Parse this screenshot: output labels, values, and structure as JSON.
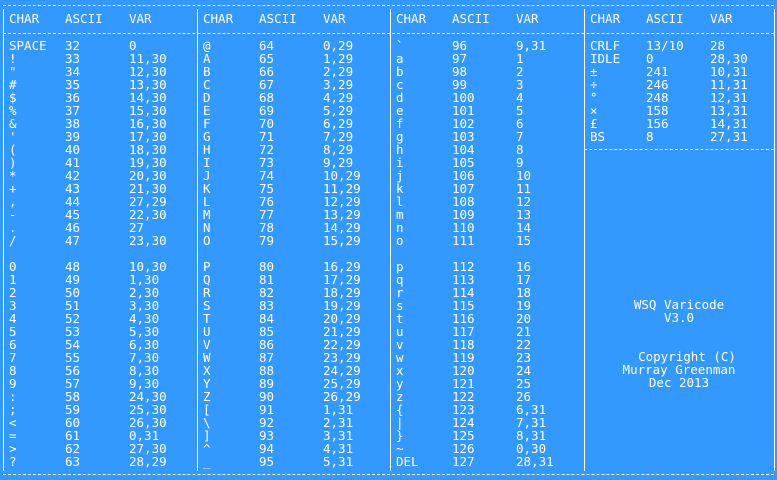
{
  "headers": [
    "CHAR",
    "ASCII",
    "VAR"
  ],
  "panels": [
    {
      "rows": [
        [
          "SPACE",
          "32",
          "0"
        ],
        [
          "!",
          "33",
          "11,30"
        ],
        [
          "\"",
          "34",
          "12,30"
        ],
        [
          "#",
          "35",
          "13,30"
        ],
        [
          "$",
          "36",
          "14,30"
        ],
        [
          "%",
          "37",
          "15,30"
        ],
        [
          "&",
          "38",
          "16,30"
        ],
        [
          "'",
          "39",
          "17,30"
        ],
        [
          "(",
          "40",
          "18,30"
        ],
        [
          ")",
          "41",
          "19,30"
        ],
        [
          "*",
          "42",
          "20,30"
        ],
        [
          "+",
          "43",
          "21,30"
        ],
        [
          ",",
          "44",
          "27,29"
        ],
        [
          "-",
          "45",
          "22,30"
        ],
        [
          ".",
          "46",
          "27"
        ],
        [
          "/",
          "47",
          "23,30"
        ],
        [
          "0",
          "48",
          "10,30"
        ],
        [
          "1",
          "49",
          "1,30"
        ],
        [
          "2",
          "50",
          "2,30"
        ],
        [
          "3",
          "51",
          "3,30"
        ],
        [
          "4",
          "52",
          "4,30"
        ],
        [
          "5",
          "53",
          "5,30"
        ],
        [
          "6",
          "54",
          "6,30"
        ],
        [
          "7",
          "55",
          "7,30"
        ],
        [
          "8",
          "56",
          "8,30"
        ],
        [
          "9",
          "57",
          "9,30"
        ],
        [
          ":",
          "58",
          "24,30"
        ],
        [
          ";",
          "59",
          "25,30"
        ],
        [
          "<",
          "60",
          "26,30"
        ],
        [
          "=",
          "61",
          "0,31"
        ],
        [
          ">",
          "62",
          "27,30"
        ],
        [
          "?",
          "63",
          "28,29"
        ]
      ]
    },
    {
      "rows": [
        [
          "@",
          "64",
          "0,29"
        ],
        [
          "A",
          "65",
          "1,29"
        ],
        [
          "B",
          "66",
          "2,29"
        ],
        [
          "C",
          "67",
          "3,29"
        ],
        [
          "D",
          "68",
          "4,29"
        ],
        [
          "E",
          "69",
          "5,29"
        ],
        [
          "F",
          "70",
          "6,29"
        ],
        [
          "G",
          "71",
          "7,29"
        ],
        [
          "H",
          "72",
          "8,29"
        ],
        [
          "I",
          "73",
          "9,29"
        ],
        [
          "J",
          "74",
          "10,29"
        ],
        [
          "K",
          "75",
          "11,29"
        ],
        [
          "L",
          "76",
          "12,29"
        ],
        [
          "M",
          "77",
          "13,29"
        ],
        [
          "N",
          "78",
          "14,29"
        ],
        [
          "O",
          "79",
          "15,29"
        ],
        [
          "P",
          "80",
          "16,29"
        ],
        [
          "Q",
          "81",
          "17,29"
        ],
        [
          "R",
          "82",
          "18,29"
        ],
        [
          "S",
          "83",
          "19,29"
        ],
        [
          "T",
          "84",
          "20,29"
        ],
        [
          "U",
          "85",
          "21,29"
        ],
        [
          "V",
          "86",
          "22,29"
        ],
        [
          "W",
          "87",
          "23,29"
        ],
        [
          "X",
          "88",
          "24,29"
        ],
        [
          "Y",
          "89",
          "25,29"
        ],
        [
          "Z",
          "90",
          "26,29"
        ],
        [
          "[",
          "91",
          "1,31"
        ],
        [
          "\\",
          "92",
          "2,31"
        ],
        [
          "]",
          "93",
          "3,31"
        ],
        [
          "^",
          "94",
          "4,31"
        ],
        [
          "_",
          "95",
          "5,31"
        ]
      ]
    },
    {
      "rows": [
        [
          "`",
          "96",
          "9,31"
        ],
        [
          "a",
          "97",
          "1"
        ],
        [
          "b",
          "98",
          "2"
        ],
        [
          "c",
          "99",
          "3"
        ],
        [
          "d",
          "100",
          "4"
        ],
        [
          "e",
          "101",
          "5"
        ],
        [
          "f",
          "102",
          "6"
        ],
        [
          "g",
          "103",
          "7"
        ],
        [
          "h",
          "104",
          "8"
        ],
        [
          "i",
          "105",
          "9"
        ],
        [
          "j",
          "106",
          "10"
        ],
        [
          "k",
          "107",
          "11"
        ],
        [
          "l",
          "108",
          "12"
        ],
        [
          "m",
          "109",
          "13"
        ],
        [
          "n",
          "110",
          "14"
        ],
        [
          "o",
          "111",
          "15"
        ],
        [
          "p",
          "112",
          "16"
        ],
        [
          "q",
          "113",
          "17"
        ],
        [
          "r",
          "114",
          "18"
        ],
        [
          "s",
          "115",
          "19"
        ],
        [
          "t",
          "116",
          "20"
        ],
        [
          "u",
          "117",
          "21"
        ],
        [
          "v",
          "118",
          "22"
        ],
        [
          "w",
          "119",
          "23"
        ],
        [
          "x",
          "120",
          "24"
        ],
        [
          "y",
          "121",
          "25"
        ],
        [
          "z",
          "122",
          "26"
        ],
        [
          "{",
          "123",
          "6,31"
        ],
        [
          "|",
          "124",
          "7,31"
        ],
        [
          "}",
          "125",
          "8,31"
        ],
        [
          "~",
          "126",
          "0,30"
        ],
        [
          "DEL",
          "127",
          "28,31"
        ]
      ]
    },
    {
      "rows": [
        [
          "CRLF",
          "13/10",
          "28"
        ],
        [
          "IDLE",
          "0",
          "28,30"
        ],
        [
          "±",
          "241",
          "10,31"
        ],
        [
          "÷",
          "246",
          "11,31"
        ],
        [
          "°",
          "248",
          "12,31"
        ],
        [
          "×",
          "158",
          "13,31"
        ],
        [
          "£",
          "156",
          "14,31"
        ],
        [
          "BS",
          "8",
          "27,31"
        ]
      ]
    }
  ],
  "info": {
    "title": "WSQ Varicode",
    "version": "V3.0",
    "copyright": "Copyright (C)",
    "author": "Murray Greenman",
    "date": "Dec 2013"
  }
}
